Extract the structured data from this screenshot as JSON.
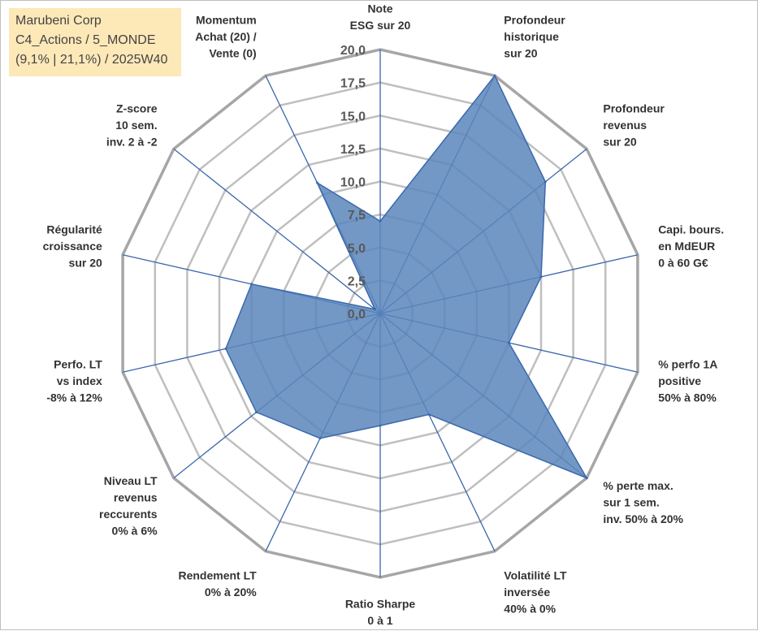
{
  "title_box": {
    "line1": "Marubeni Corp",
    "line2": "C4_Actions / 5_MONDE",
    "line3": "(9,1% | 21,1%) / 2025W40"
  },
  "chart_data": {
    "type": "radar",
    "title": "Marubeni Corp",
    "range": [
      0,
      20
    ],
    "tick_step": 2.5,
    "tick_labels": [
      "0,0",
      "2,5",
      "5,0",
      "7,5",
      "10,0",
      "12,5",
      "15,0",
      "17,5",
      "20,0"
    ],
    "grid": true,
    "colors": {
      "fill": "#5b86bb",
      "stroke": "#3a68ad",
      "axis": "#3a68ad",
      "grid": "#bfbfbf",
      "outer": "#a6a6a6"
    },
    "axes": [
      {
        "label": "Note\nESG sur 20",
        "value": 7.0
      },
      {
        "label": "Profondeur\nhistorique\nsur 20",
        "value": 20.0
      },
      {
        "label": "Profondeur\nrevenus\nsur 20",
        "value": 16.0
      },
      {
        "label": "Capi. bours.\nen MdEUR\n0 à 60 G€",
        "value": 12.5
      },
      {
        "label": "% perfo 1A\npositive\n50% à 80%",
        "value": 10.0
      },
      {
        "label": "% perte max.\nsur 1 sem.\ninv. 50% à 20%",
        "value": 20.0
      },
      {
        "label": "Volatilité LT\ninversée\n40% à 0%",
        "value": 8.5
      },
      {
        "label": "Ratio Sharpe\n0 à 1",
        "value": 8.5
      },
      {
        "label": "Rendement LT\n0% à 20%",
        "value": 10.5
      },
      {
        "label": "Niveau LT\nrevenus\nreccurents\n0% à 6%",
        "value": 12.0
      },
      {
        "label": "Perfo. LT\nvs index\n-8% à 12%",
        "value": 12.0
      },
      {
        "label": "Régularité\ncroissance\nsur 20",
        "value": 10.0
      },
      {
        "label": "Z-score\n10 sem.\ninv. 2 à -2",
        "value": 0.5
      },
      {
        "label": "Momentum\nAchat (20) /\nVente (0)",
        "value": 11.0
      }
    ]
  }
}
